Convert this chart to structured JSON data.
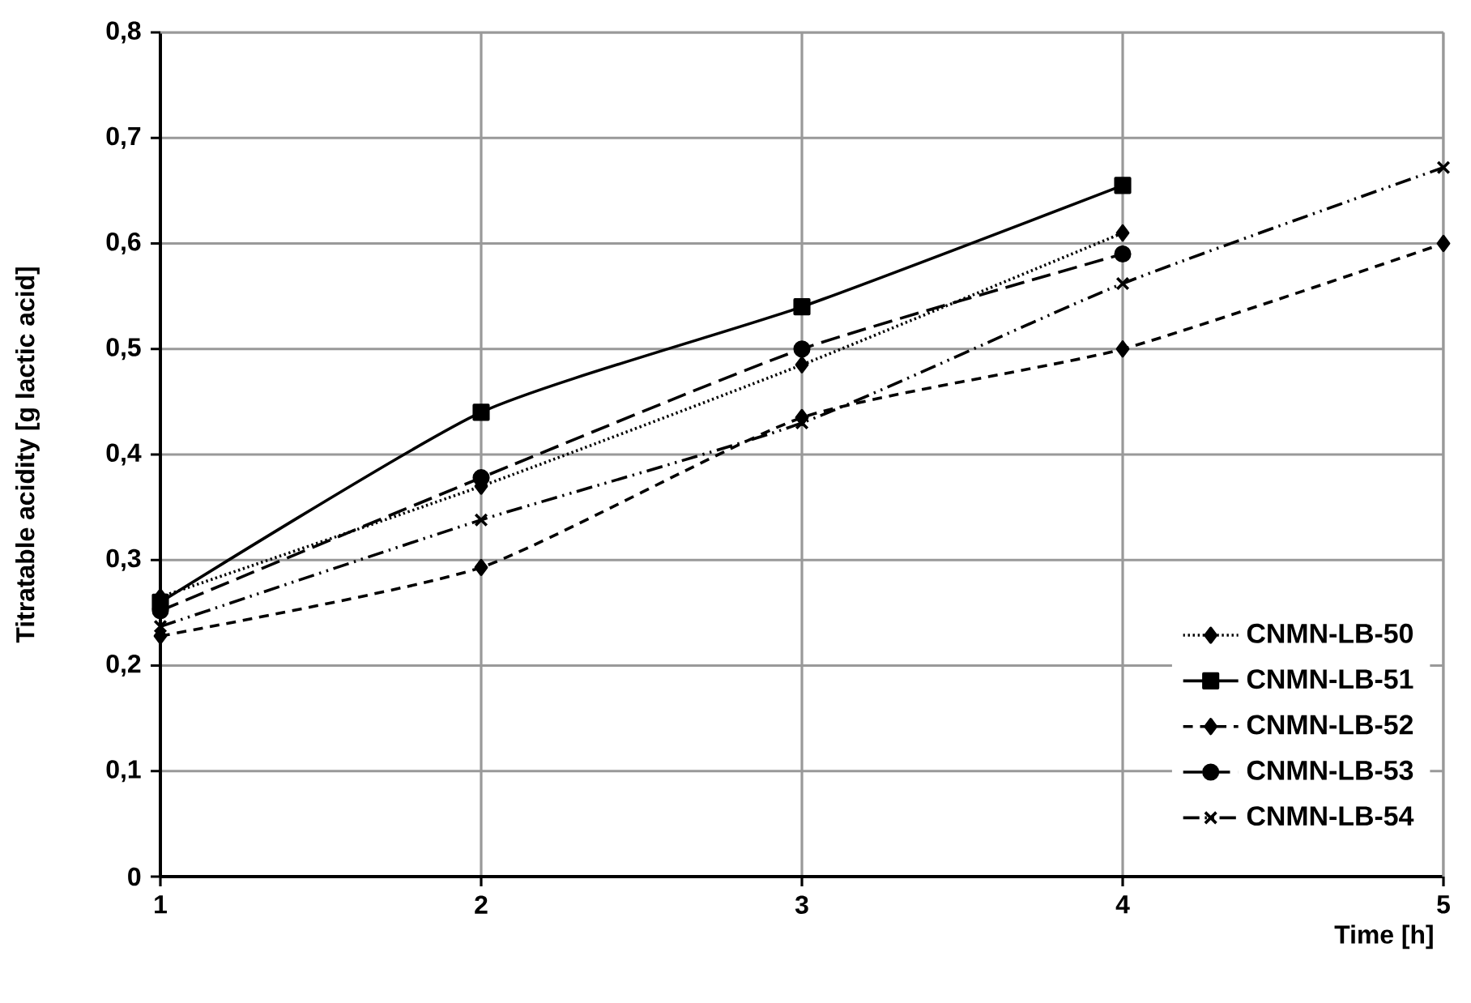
{
  "chart_data": {
    "type": "line",
    "xlabel": "Time [h]",
    "ylabel": "Titratable acidity  [g lactic acid]",
    "x": [
      1,
      2,
      3,
      4,
      5
    ],
    "series": [
      {
        "name": "CNMN-LB-50",
        "color": "#000000",
        "marker": "diamond",
        "line_style": "dotted",
        "values": [
          0.265,
          0.37,
          0.485,
          0.61,
          null
        ]
      },
      {
        "name": "CNMN-LB-51",
        "color": "#000000",
        "marker": "square",
        "line_style": "solid",
        "values": [
          0.26,
          0.44,
          0.54,
          0.655,
          null
        ]
      },
      {
        "name": "CNMN-LB-52",
        "color": "#000000",
        "marker": "diamond",
        "line_style": "dashed",
        "values": [
          0.228,
          0.293,
          0.435,
          0.5,
          0.6
        ]
      },
      {
        "name": "CNMN-LB-53",
        "color": "#000000",
        "marker": "circle",
        "line_style": "longdash",
        "values": [
          0.252,
          0.378,
          0.5,
          0.59,
          null
        ]
      },
      {
        "name": "CNMN-LB-54",
        "color": "#000000",
        "marker": "cross",
        "line_style": "dashdotdot",
        "values": [
          0.237,
          0.338,
          0.43,
          0.562,
          0.672
        ]
      }
    ],
    "xlim": [
      1,
      5
    ],
    "xticks": [
      1,
      2,
      3,
      4,
      5
    ],
    "ylim": [
      0,
      0.8
    ],
    "yticks": [
      {
        "value": 0,
        "label": "0"
      },
      {
        "value": 0.1,
        "label": "0,1"
      },
      {
        "value": 0.2,
        "label": "0,2"
      },
      {
        "value": 0.3,
        "label": "0,3"
      },
      {
        "value": 0.4,
        "label": "0,4"
      },
      {
        "value": 0.5,
        "label": "0,5"
      },
      {
        "value": 0.6,
        "label": "0,6"
      },
      {
        "value": 0.7,
        "label": "0,7"
      },
      {
        "value": 0.8,
        "label": "0,8"
      }
    ],
    "grid": true,
    "legend": "bottom right"
  }
}
